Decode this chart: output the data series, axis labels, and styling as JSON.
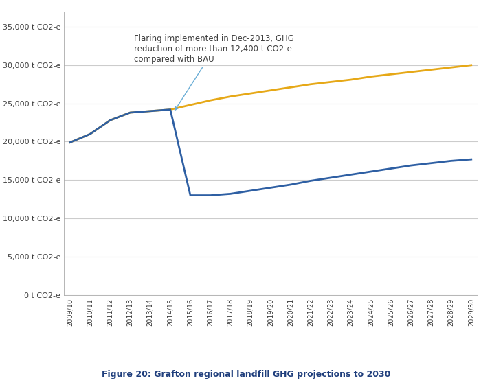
{
  "x_labels": [
    "2009/10",
    "2010/11",
    "2011/12",
    "2012/13",
    "2013/14",
    "2014/15",
    "2015/16",
    "2016/17",
    "2017/18",
    "2018/19",
    "2019/20",
    "2020/21",
    "2021/22",
    "2022/23",
    "2023/24",
    "2024/25",
    "2025/26",
    "2026/27",
    "2027/28",
    "2028/29",
    "2029/30"
  ],
  "bau_values": [
    19900,
    21000,
    22800,
    23800,
    24000,
    24200,
    24800,
    25400,
    25900,
    26300,
    26700,
    27100,
    27500,
    27800,
    28100,
    28500,
    28800,
    29100,
    29400,
    29700,
    30000
  ],
  "with_flaring_values": [
    19900,
    21000,
    22800,
    23800,
    24000,
    24200,
    13000,
    13000,
    13200,
    13600,
    14000,
    14400,
    14900,
    15300,
    15700,
    16100,
    16500,
    16900,
    17200,
    17500,
    17700
  ],
  "bau_color": "#E6A817",
  "flaring_color": "#2E5FA3",
  "annotation_text": "Flaring implemented in Dec-2013, GHG\nreduction of more than 12,400 t CO2-e\ncompared with BAU",
  "caption_title": "Figure 20: Grafton regional landfill GHG projections to 2030",
  "caption_color": "#1F3E7C",
  "ylabel_ticks": [
    "0 t CO2-e",
    "5,000 t CO2-e",
    "10,000 t CO2-e",
    "15,000 t CO2-e",
    "20,000 t CO2-e",
    "25,000 t CO2-e",
    "30,000 t CO2-e",
    "35,000 t CO2-e"
  ],
  "ytick_values": [
    0,
    5000,
    10000,
    15000,
    20000,
    25000,
    30000,
    35000
  ],
  "ylim": [
    0,
    37000
  ],
  "background_color": "#FFFFFF",
  "grid_color": "#CCCCCC",
  "text_color": "#404040",
  "arrow_color": "#6BAED6",
  "border_color": "#AAAAAA"
}
